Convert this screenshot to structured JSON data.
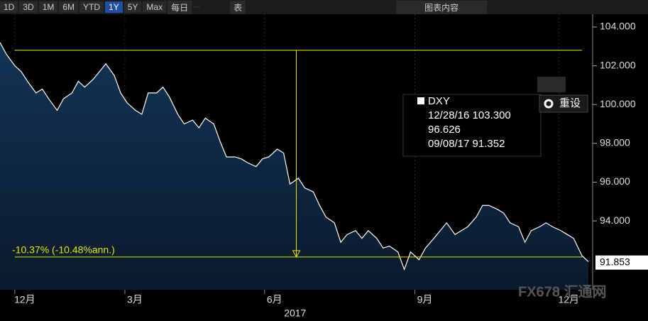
{
  "toolbar": {
    "ranges": [
      "1D",
      "3D",
      "1M",
      "6M",
      "YTD",
      "1Y",
      "5Y",
      "Max"
    ],
    "selected": "1Y",
    "interval": "每日",
    "table": "表",
    "content": "图表内容"
  },
  "reset": "重设",
  "watermark": "FX678 汇通网",
  "chart_data": {
    "type": "area",
    "x": [
      0,
      3,
      7,
      10,
      13,
      17,
      20,
      23,
      27,
      30,
      34,
      37,
      40,
      44,
      47,
      50,
      54,
      57,
      60,
      64,
      67,
      70,
      74,
      77,
      80,
      84,
      87,
      91,
      94,
      97,
      101,
      104,
      107,
      111,
      114,
      117,
      121,
      124,
      127,
      131,
      134,
      137,
      141,
      144,
      148,
      151,
      154,
      158,
      161,
      164,
      168,
      171,
      174,
      178,
      181,
      184,
      188,
      191,
      194,
      198,
      201,
      205,
      208,
      211,
      215,
      218,
      221,
      225,
      228,
      231,
      235,
      238,
      241,
      245,
      248,
      251,
      255,
      258,
      261,
      265,
      268,
      271,
      275,
      278
    ],
    "series": [
      {
        "name": "DXY",
        "color": "#ffffff",
        "values": [
          103.2,
          102.6,
          102.0,
          101.7,
          101.2,
          100.6,
          100.8,
          100.3,
          99.7,
          100.3,
          100.6,
          101.2,
          100.9,
          101.3,
          101.7,
          102.1,
          101.5,
          100.6,
          100.1,
          99.7,
          99.5,
          100.6,
          100.6,
          100.9,
          100.4,
          99.5,
          99.0,
          99.2,
          98.8,
          99.3,
          99.0,
          98.1,
          97.3,
          97.3,
          97.2,
          97.0,
          96.8,
          97.2,
          97.3,
          97.7,
          97.5,
          95.9,
          96.2,
          95.7,
          95.5,
          94.8,
          94.2,
          93.9,
          92.9,
          93.3,
          93.5,
          93.1,
          93.5,
          93.1,
          92.6,
          92.7,
          92.4,
          91.5,
          92.4,
          92.0,
          92.6,
          93.1,
          93.5,
          93.9,
          93.3,
          93.5,
          93.7,
          94.2,
          94.8,
          94.8,
          94.6,
          94.4,
          93.9,
          93.7,
          92.9,
          93.5,
          93.7,
          93.9,
          93.7,
          93.5,
          93.3,
          93.1,
          92.2,
          91.9
        ]
      }
    ],
    "xlim": [
      0,
      280
    ],
    "xticks": [
      {
        "value": 7,
        "label": "12月"
      },
      {
        "value": 59,
        "label": "3月"
      },
      {
        "value": 125,
        "label": "6月"
      },
      {
        "value": 196,
        "label": "9月"
      },
      {
        "value": 264,
        "label": "12月"
      }
    ],
    "x_group_label": "2017",
    "ylim": [
      90.45,
      104.66
    ],
    "yticks": [
      {
        "value": 94,
        "label": "94.000"
      },
      {
        "value": 96,
        "label": "96.000"
      },
      {
        "value": 98,
        "label": "98.000"
      },
      {
        "value": 100,
        "label": "100.000"
      },
      {
        "value": 102,
        "label": "102.000"
      },
      {
        "value": 104,
        "label": "104.000"
      }
    ],
    "last_value": 91.853,
    "measure": {
      "start": 102.8,
      "end": 92.14,
      "x": 140,
      "x_start": 7,
      "x_end": 275,
      "label": "-10.37% (-10.48%ann.)",
      "color": "#e6e600"
    },
    "legend": {
      "rows": [
        "12/28/16 103.300",
        "96.626",
        "09/08/17 91.352"
      ]
    }
  }
}
